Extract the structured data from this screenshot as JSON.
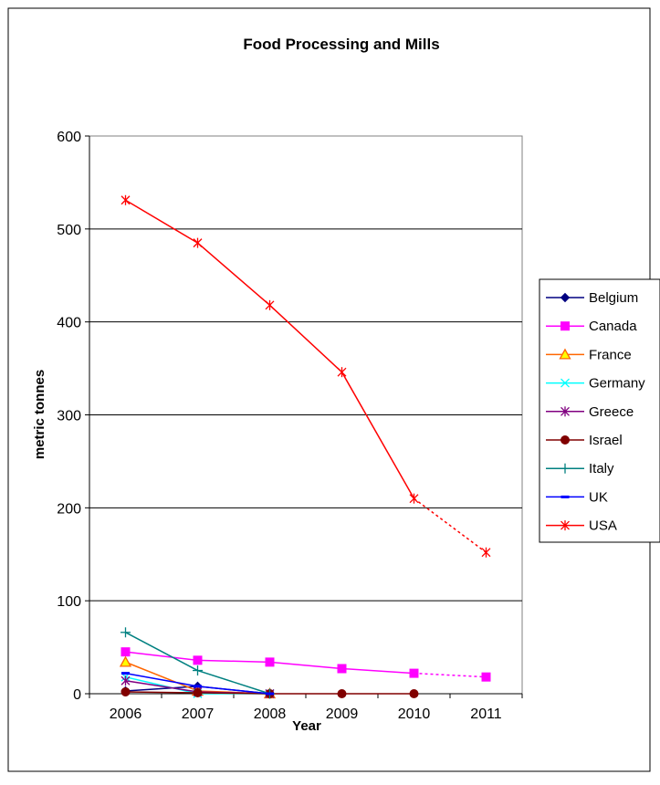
{
  "chart_data": {
    "type": "line",
    "title": "Food Processing and Mills",
    "xlabel": "Year",
    "ylabel": "metric tonnes",
    "categories": [
      "2006",
      "2007",
      "2008",
      "2009",
      "2010",
      "2011"
    ],
    "ylim": [
      0,
      600
    ],
    "yticks": [
      0,
      100,
      200,
      300,
      400,
      500,
      600
    ],
    "grid": "horizontal",
    "legend": "right",
    "series": [
      {
        "name": "Belgium",
        "values": [
          3,
          8,
          0,
          null,
          null,
          null
        ],
        "color": "#000080",
        "marker": "diamond"
      },
      {
        "name": "Canada",
        "values": [
          45,
          36,
          34,
          27,
          22,
          18
        ],
        "color": "#ff00ff",
        "marker": "square",
        "dashed_from_index": 4
      },
      {
        "name": "France",
        "values": [
          34,
          3,
          0,
          null,
          null,
          null
        ],
        "color": "#ff6600",
        "marker": "triangle"
      },
      {
        "name": "Germany",
        "values": [
          18,
          0,
          0,
          null,
          null,
          null
        ],
        "color": "#00ffff",
        "marker": "x"
      },
      {
        "name": "Greece",
        "values": [
          14,
          2,
          0,
          null,
          null,
          null
        ],
        "color": "#800080",
        "marker": "star"
      },
      {
        "name": "Israel",
        "values": [
          2,
          1,
          0,
          0,
          0,
          null
        ],
        "color": "#800000",
        "marker": "circle"
      },
      {
        "name": "Italy",
        "values": [
          66,
          25,
          0,
          null,
          null,
          null
        ],
        "color": "#008080",
        "marker": "plus"
      },
      {
        "name": "UK",
        "values": [
          22,
          8,
          0,
          null,
          null,
          null
        ],
        "color": "#0000ff",
        "marker": "dash"
      },
      {
        "name": "USA",
        "values": [
          531,
          485,
          418,
          346,
          210,
          152
        ],
        "color": "#ff0000",
        "marker": "star",
        "dashed_from_index": 4
      }
    ]
  }
}
